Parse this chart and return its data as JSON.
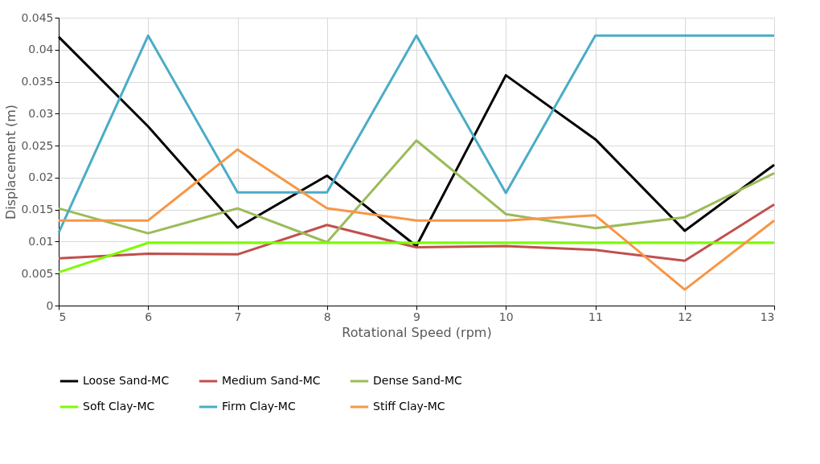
{
  "chart_data": {
    "type": "line",
    "xlabel": "Rotational Speed (rpm)",
    "ylabel": "Displacement (m)",
    "x": [
      5,
      6,
      7,
      8,
      9,
      10,
      11,
      12,
      13
    ],
    "xlim": [
      5,
      13
    ],
    "xticks": [
      5,
      6,
      7,
      8,
      9,
      10,
      11,
      12,
      13
    ],
    "ylim": [
      0,
      0.045
    ],
    "yticks": [
      0,
      0.005,
      0.01,
      0.015,
      0.02,
      0.025,
      0.03,
      0.035,
      0.04,
      0.045
    ],
    "grid": true,
    "legend": "bottom",
    "marker": "none",
    "line_style": "solid",
    "series": [
      {
        "name": "Loose Sand-MC",
        "color": "#000000",
        "values": [
          0.042,
          0.028,
          0.0122,
          0.0203,
          0.0093,
          0.036,
          0.026,
          0.0117,
          0.022
        ]
      },
      {
        "name": "Medium Sand-MC",
        "color": "#c0504d",
        "values": [
          0.0074,
          0.0081,
          0.008,
          0.0126,
          0.0091,
          0.0093,
          0.0087,
          0.007,
          0.0158
        ]
      },
      {
        "name": "Dense Sand-MC",
        "color": "#9bbb59",
        "values": [
          0.0152,
          0.0113,
          0.0152,
          0.0099,
          0.0258,
          0.0143,
          0.0121,
          0.0138,
          0.0207
        ]
      },
      {
        "name": "Soft Clay-MC",
        "color": "#7cfc00",
        "values": [
          0.0052,
          0.0098,
          0.0098,
          0.0098,
          0.0098,
          0.0098,
          0.0098,
          0.0098,
          0.0098
        ]
      },
      {
        "name": "Firm Clay-MC",
        "color": "#4bacc6",
        "values": [
          0.0114,
          0.0422,
          0.0177,
          0.0177,
          0.0422,
          0.0176,
          0.0422,
          0.0422,
          0.0422
        ]
      },
      {
        "name": "Stiff Clay-MC",
        "color": "#f79646",
        "values": [
          0.0133,
          0.0133,
          0.0244,
          0.0152,
          0.0133,
          0.0133,
          0.0141,
          0.0025,
          0.0133
        ]
      }
    ]
  }
}
